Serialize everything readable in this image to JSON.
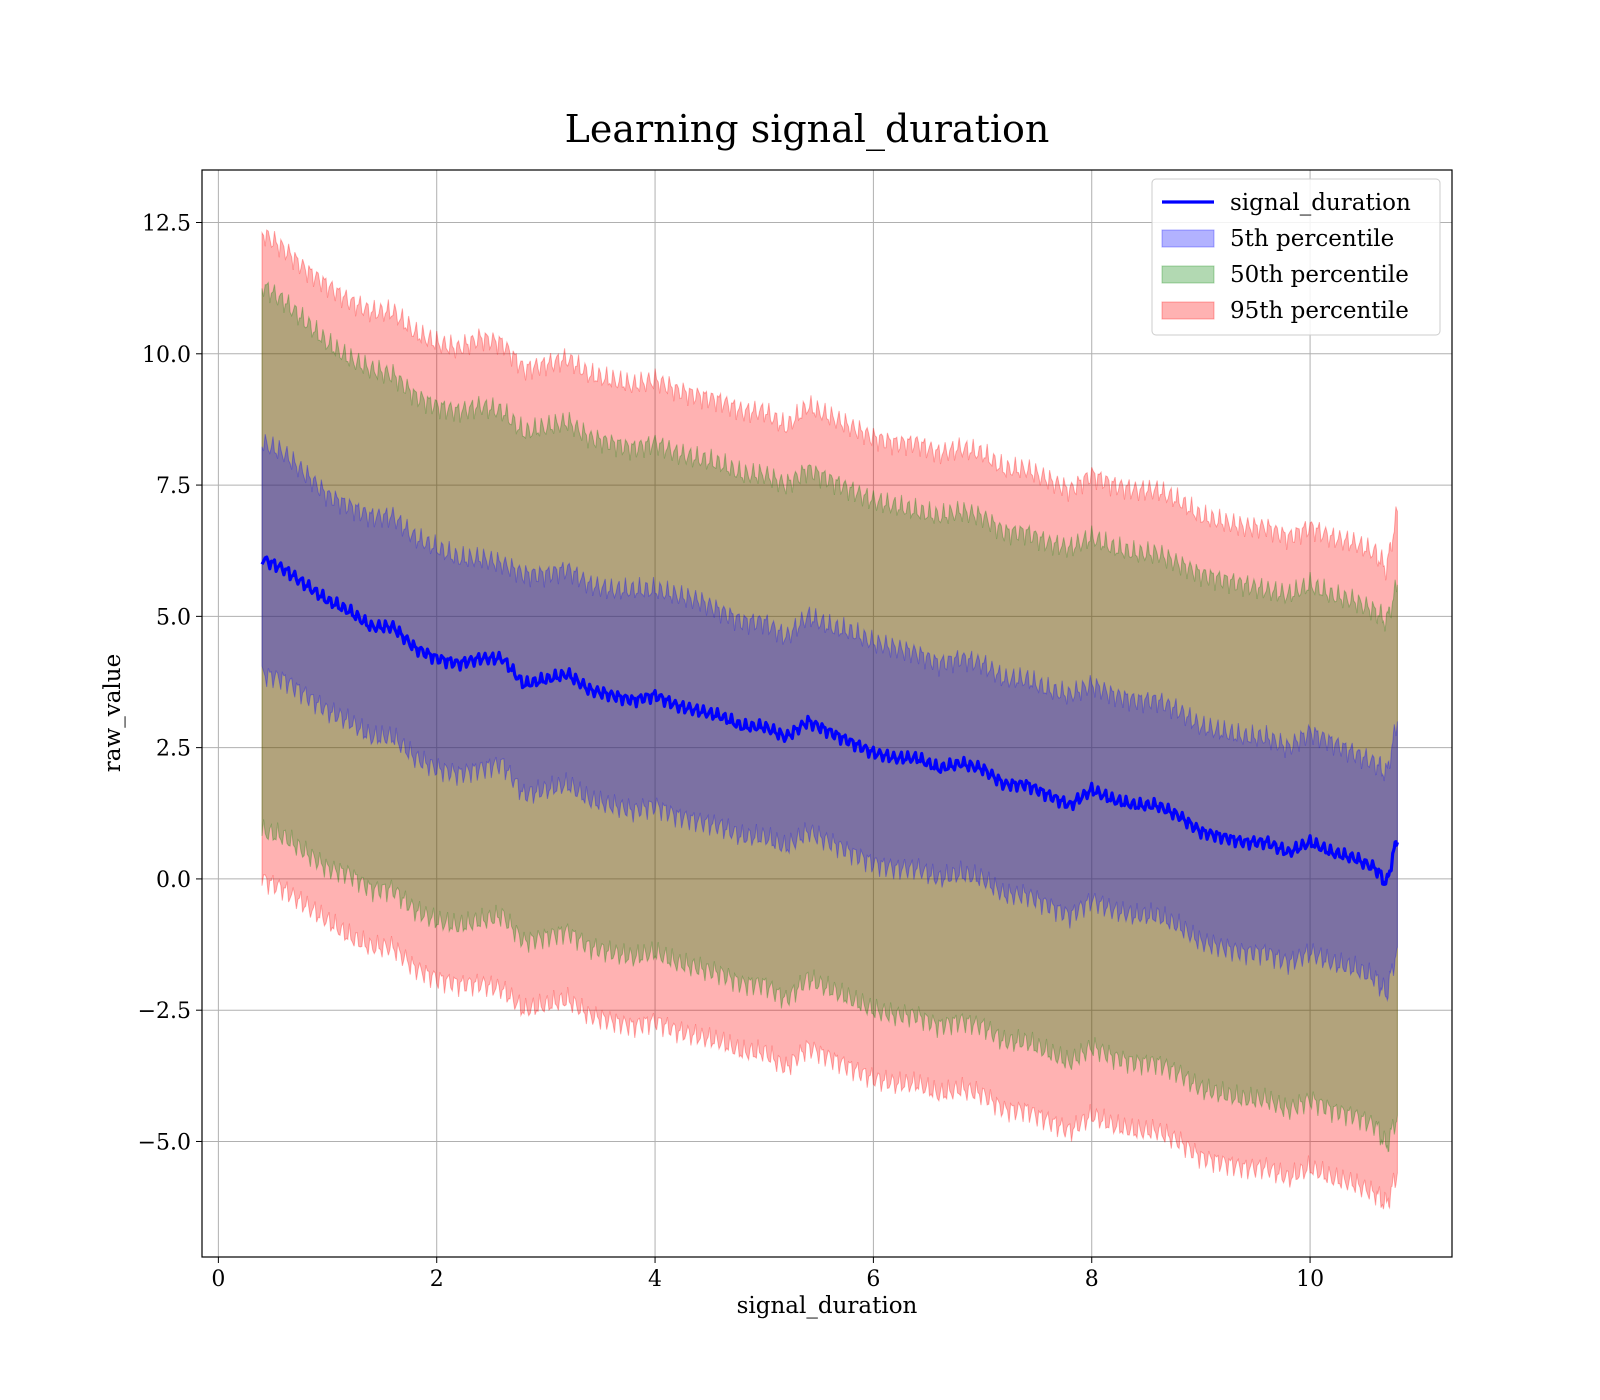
{
  "chart_data": {
    "type": "area",
    "title": "Learning signal_duration",
    "xlabel": "signal_duration",
    "ylabel": "raw_value",
    "xlim": [
      -0.15,
      11.3
    ],
    "ylim": [
      -7.2,
      13.5
    ],
    "xticks": [
      0,
      2,
      4,
      6,
      8,
      10
    ],
    "xtick_labels": [
      "0",
      "2",
      "4",
      "6",
      "8",
      "10"
    ],
    "yticks": [
      -5.0,
      -2.5,
      0.0,
      2.5,
      5.0,
      7.5,
      10.0,
      12.5
    ],
    "ytick_labels": [
      "−5.0",
      "−2.5",
      "0.0",
      "2.5",
      "5.0",
      "7.5",
      "10.0",
      "12.5"
    ],
    "grid": true,
    "legend_position": "upper right",
    "x_range": [
      0.4,
      10.82
    ],
    "series": [
      {
        "name": "signal_duration",
        "kind": "line",
        "color": "#0000ff",
        "x": [
          0.4,
          0.6,
          0.8,
          1.0,
          1.2,
          1.4,
          1.6,
          1.8,
          2.0,
          2.2,
          2.4,
          2.6,
          2.8,
          3.0,
          3.2,
          3.4,
          3.6,
          3.8,
          4.0,
          4.2,
          4.4,
          4.6,
          4.8,
          5.0,
          5.2,
          5.4,
          5.6,
          5.8,
          6.0,
          6.2,
          6.4,
          6.6,
          6.8,
          7.0,
          7.2,
          7.4,
          7.6,
          7.8,
          8.0,
          8.2,
          8.4,
          8.6,
          8.8,
          9.0,
          9.2,
          9.4,
          9.6,
          9.8,
          10.0,
          10.2,
          10.4,
          10.6,
          10.7,
          10.8
        ],
        "y": [
          6.1,
          5.9,
          5.6,
          5.3,
          5.1,
          4.8,
          4.8,
          4.4,
          4.2,
          4.1,
          4.2,
          4.2,
          3.7,
          3.8,
          3.9,
          3.6,
          3.5,
          3.4,
          3.5,
          3.3,
          3.2,
          3.1,
          2.9,
          2.9,
          2.7,
          3.0,
          2.8,
          2.6,
          2.4,
          2.3,
          2.3,
          2.1,
          2.2,
          2.1,
          1.8,
          1.8,
          1.6,
          1.4,
          1.7,
          1.5,
          1.4,
          1.4,
          1.2,
          0.9,
          0.8,
          0.7,
          0.7,
          0.5,
          0.7,
          0.5,
          0.4,
          0.2,
          -0.1,
          0.8
        ]
      },
      {
        "name": "5th percentile",
        "kind": "band",
        "color": "#0000ff",
        "x": [
          0.4,
          0.6,
          0.8,
          1.0,
          1.2,
          1.4,
          1.6,
          1.8,
          2.0,
          2.2,
          2.4,
          2.6,
          2.8,
          3.0,
          3.2,
          3.4,
          3.6,
          3.8,
          4.0,
          4.2,
          4.4,
          4.6,
          4.8,
          5.0,
          5.2,
          5.4,
          5.6,
          5.8,
          6.0,
          6.2,
          6.4,
          6.6,
          6.8,
          7.0,
          7.2,
          7.4,
          7.6,
          7.8,
          8.0,
          8.2,
          8.4,
          8.6,
          8.8,
          9.0,
          9.2,
          9.4,
          9.6,
          9.8,
          10.0,
          10.2,
          10.4,
          10.6,
          10.7,
          10.8
        ],
        "upper": [
          8.3,
          8.1,
          7.7,
          7.3,
          7.1,
          6.9,
          6.9,
          6.5,
          6.3,
          6.1,
          6.1,
          6.0,
          5.8,
          5.8,
          5.9,
          5.6,
          5.5,
          5.5,
          5.5,
          5.4,
          5.3,
          5.1,
          4.9,
          4.9,
          4.6,
          5.0,
          4.8,
          4.7,
          4.5,
          4.4,
          4.3,
          4.1,
          4.2,
          4.1,
          3.8,
          3.8,
          3.6,
          3.5,
          3.7,
          3.5,
          3.4,
          3.4,
          3.2,
          2.9,
          2.8,
          2.7,
          2.7,
          2.5,
          2.8,
          2.6,
          2.4,
          2.2,
          2.0,
          3.0
        ],
        "lower": [
          3.9,
          3.8,
          3.5,
          3.2,
          3.0,
          2.7,
          2.7,
          2.3,
          2.1,
          2.0,
          2.1,
          2.2,
          1.6,
          1.7,
          1.8,
          1.5,
          1.4,
          1.3,
          1.4,
          1.2,
          1.1,
          1.0,
          0.8,
          0.8,
          0.6,
          0.9,
          0.7,
          0.5,
          0.3,
          0.2,
          0.2,
          0.0,
          0.1,
          0.0,
          -0.3,
          -0.3,
          -0.5,
          -0.7,
          -0.4,
          -0.6,
          -0.7,
          -0.7,
          -0.9,
          -1.2,
          -1.3,
          -1.4,
          -1.4,
          -1.6,
          -1.4,
          -1.6,
          -1.7,
          -1.9,
          -2.2,
          -1.3
        ]
      },
      {
        "name": "50th percentile",
        "kind": "band",
        "color": "#008000",
        "x": [
          0.4,
          0.6,
          0.8,
          1.0,
          1.2,
          1.4,
          1.6,
          1.8,
          2.0,
          2.2,
          2.4,
          2.6,
          2.8,
          3.0,
          3.2,
          3.4,
          3.6,
          3.8,
          4.0,
          4.2,
          4.4,
          4.6,
          4.8,
          5.0,
          5.2,
          5.4,
          5.6,
          5.8,
          6.0,
          6.2,
          6.4,
          6.6,
          6.8,
          7.0,
          7.2,
          7.4,
          7.6,
          7.8,
          8.0,
          8.2,
          8.4,
          8.6,
          8.8,
          9.0,
          9.2,
          9.4,
          9.6,
          9.8,
          10.0,
          10.2,
          10.4,
          10.6,
          10.7,
          10.8
        ],
        "upper": [
          11.3,
          11.0,
          10.6,
          10.2,
          9.9,
          9.7,
          9.6,
          9.2,
          9.0,
          8.9,
          9.0,
          8.9,
          8.5,
          8.6,
          8.7,
          8.4,
          8.3,
          8.2,
          8.3,
          8.1,
          8.0,
          7.9,
          7.7,
          7.7,
          7.5,
          7.8,
          7.6,
          7.4,
          7.2,
          7.1,
          7.0,
          6.9,
          7.0,
          6.9,
          6.6,
          6.6,
          6.4,
          6.3,
          6.5,
          6.3,
          6.2,
          6.2,
          6.0,
          5.8,
          5.7,
          5.6,
          5.5,
          5.4,
          5.6,
          5.4,
          5.3,
          5.1,
          4.9,
          5.6
        ],
        "lower": [
          0.9,
          0.8,
          0.5,
          0.2,
          0.1,
          -0.2,
          -0.2,
          -0.6,
          -0.8,
          -0.9,
          -0.8,
          -0.7,
          -1.2,
          -1.1,
          -1.0,
          -1.3,
          -1.4,
          -1.5,
          -1.4,
          -1.6,
          -1.7,
          -1.8,
          -2.0,
          -2.0,
          -2.3,
          -1.9,
          -2.1,
          -2.3,
          -2.5,
          -2.6,
          -2.6,
          -2.8,
          -2.7,
          -2.8,
          -3.1,
          -3.1,
          -3.3,
          -3.5,
          -3.2,
          -3.4,
          -3.5,
          -3.5,
          -3.7,
          -4.0,
          -4.1,
          -4.2,
          -4.2,
          -4.4,
          -4.2,
          -4.4,
          -4.5,
          -4.7,
          -5.1,
          -4.5
        ]
      },
      {
        "name": "95th percentile",
        "kind": "band",
        "color": "#ff0000",
        "x": [
          0.4,
          0.6,
          0.8,
          1.0,
          1.2,
          1.4,
          1.6,
          1.8,
          2.0,
          2.2,
          2.4,
          2.6,
          2.8,
          3.0,
          3.2,
          3.4,
          3.6,
          3.8,
          4.0,
          4.2,
          4.4,
          4.6,
          4.8,
          5.0,
          5.2,
          5.4,
          5.6,
          5.8,
          6.0,
          6.2,
          6.4,
          6.6,
          6.8,
          7.0,
          7.2,
          7.4,
          7.6,
          7.8,
          8.0,
          8.2,
          8.4,
          8.6,
          8.8,
          9.0,
          9.2,
          9.4,
          9.6,
          9.8,
          10.0,
          10.2,
          10.4,
          10.6,
          10.7,
          10.8
        ],
        "upper": [
          12.3,
          12.0,
          11.6,
          11.3,
          11.0,
          10.8,
          10.8,
          10.4,
          10.2,
          10.1,
          10.3,
          10.2,
          9.7,
          9.8,
          9.9,
          9.6,
          9.5,
          9.4,
          9.5,
          9.3,
          9.2,
          9.1,
          8.9,
          8.9,
          8.6,
          9.0,
          8.8,
          8.6,
          8.4,
          8.3,
          8.3,
          8.1,
          8.2,
          8.1,
          7.8,
          7.8,
          7.6,
          7.4,
          7.7,
          7.5,
          7.4,
          7.4,
          7.2,
          6.9,
          6.8,
          6.7,
          6.7,
          6.5,
          6.7,
          6.5,
          6.4,
          6.2,
          5.9,
          7.0
        ],
        "lower": [
          0.0,
          -0.2,
          -0.5,
          -0.8,
          -1.1,
          -1.3,
          -1.3,
          -1.7,
          -1.9,
          -2.0,
          -2.0,
          -2.1,
          -2.5,
          -2.4,
          -2.3,
          -2.6,
          -2.7,
          -2.8,
          -2.7,
          -2.9,
          -3.0,
          -3.1,
          -3.3,
          -3.3,
          -3.6,
          -3.2,
          -3.4,
          -3.6,
          -3.8,
          -3.9,
          -3.9,
          -4.1,
          -4.0,
          -4.1,
          -4.4,
          -4.4,
          -4.6,
          -4.8,
          -4.5,
          -4.7,
          -4.8,
          -4.8,
          -5.0,
          -5.3,
          -5.4,
          -5.5,
          -5.5,
          -5.7,
          -5.5,
          -5.7,
          -5.8,
          -6.0,
          -6.2,
          -5.6
        ]
      }
    ]
  }
}
